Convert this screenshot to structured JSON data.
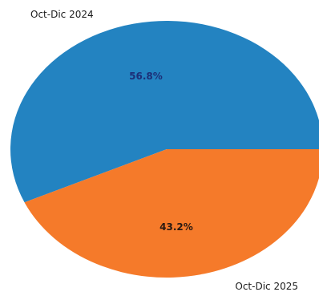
{
  "chart_data": {
    "type": "pie",
    "categories": [
      "Oct-Dic 2024",
      "Oct-Dic 2025"
    ],
    "values": [
      56.8,
      43.2
    ],
    "data_labels": [
      "56.8%",
      "43.2%"
    ],
    "colors": [
      "#2383c1",
      "#f57a2a"
    ],
    "label_colors": [
      "#1c2f78",
      "#2a1a12"
    ]
  }
}
